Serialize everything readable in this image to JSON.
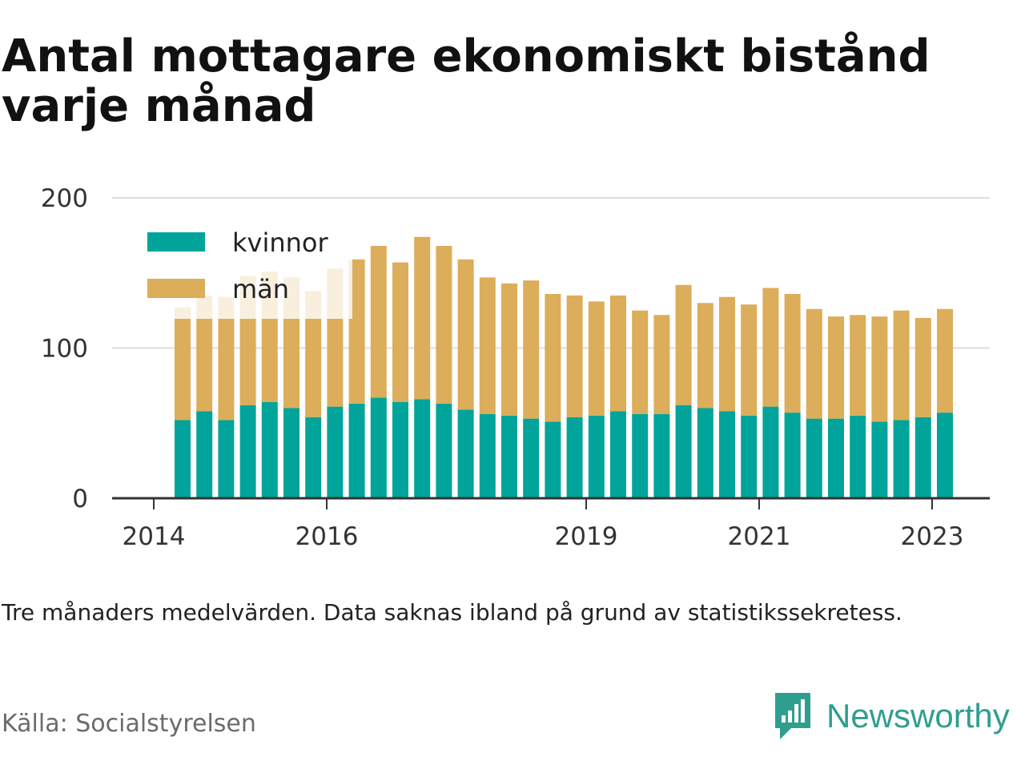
{
  "title": "Antal mottagare ekonomiskt bistånd varje månad",
  "caption": "Tre månaders medelvärden. Data saknas ibland på grund av statistikssekretess.",
  "source": "Källa: Socialstyrelsen",
  "brand": {
    "name": "Newsworthy",
    "color": "#2f9e8f",
    "icon": "newsworthy-logo-icon"
  },
  "colors": {
    "kvinnor": "#00a49a",
    "man": "#dcad5a",
    "grid": "#dddddd",
    "axis": "#333333"
  },
  "chart_data": {
    "type": "bar",
    "stacked": true,
    "title": "",
    "xlabel": "",
    "ylabel": "",
    "ylim": [
      0,
      200
    ],
    "yticks": [
      0,
      100,
      200
    ],
    "xticks": [
      "2014",
      "2016",
      "2019",
      "2021",
      "2023"
    ],
    "legend_placement": "top-left",
    "grid": true,
    "series": [
      {
        "name": "kvinnor",
        "values": [
          52,
          58,
          52,
          62,
          64,
          60,
          54,
          61,
          63,
          67,
          64,
          66,
          63,
          59,
          56,
          55,
          53,
          51,
          54,
          55,
          58,
          56,
          56,
          62,
          60,
          58,
          55,
          61,
          57,
          53,
          53,
          55,
          51,
          52,
          54,
          57
        ]
      },
      {
        "name": "män",
        "values": [
          75,
          77,
          82,
          86,
          87,
          87,
          84,
          92,
          96,
          101,
          93,
          108,
          105,
          100,
          91,
          88,
          92,
          85,
          81,
          76,
          77,
          69,
          66,
          80,
          70,
          76,
          74,
          79,
          79,
          73,
          68,
          67,
          70,
          73,
          66,
          69
        ]
      }
    ]
  }
}
